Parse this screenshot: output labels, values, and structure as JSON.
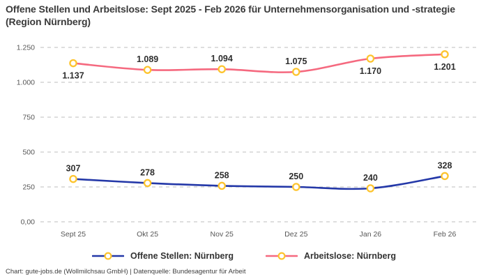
{
  "title": "Offene Stellen und Arbeitslose: Sept 2025 - Feb 2026 für Unternehmensorganisation und -strategie (Region Nürnberg)",
  "footer": "Chart: gute-jobs.de (Wollmilchsau GmbH) | Datenquelle: Bundesagentur für Arbeit",
  "colors": {
    "open_positions_line": "#2438a8",
    "unemployed_line": "#f5697f",
    "marker_ring": "#fdc42e",
    "marker_fill": "#ffffff",
    "gridline": "#c9c9c9",
    "axis_text": "#565656",
    "data_label_text": "#2e2e2e"
  },
  "legend": [
    {
      "label": "Offene Stellen: Nürnberg",
      "color": "#2438a8"
    },
    {
      "label": "Arbeitslose: Nürnberg",
      "color": "#f5697f"
    }
  ],
  "chart_data": {
    "type": "line",
    "title": "Offene Stellen und Arbeitslose: Sept 2025 - Feb 2026 für Unternehmensorganisation und -strategie (Region Nürnberg)",
    "categories": [
      "Sept 25",
      "Okt 25",
      "Nov 25",
      "Dez 25",
      "Jan 26",
      "Feb 26"
    ],
    "series": [
      {
        "name": "Offene Stellen: Nürnberg",
        "color": "#2438a8",
        "values": [
          307,
          278,
          258,
          250,
          240,
          328
        ],
        "labels": [
          "307",
          "278",
          "258",
          "250",
          "240",
          "328"
        ],
        "label_positions": [
          "above",
          "above",
          "above",
          "above",
          "above",
          "above"
        ]
      },
      {
        "name": "Arbeitslose: Nürnberg",
        "color": "#f5697f",
        "values": [
          1137,
          1089,
          1094,
          1075,
          1170,
          1201
        ],
        "labels": [
          "1.137",
          "1.089",
          "1.094",
          "1.075",
          "1.170",
          "1.201"
        ],
        "label_positions": [
          "below",
          "above",
          "above",
          "above",
          "below",
          "below"
        ]
      }
    ],
    "y_ticks": [
      {
        "value": 0,
        "label": "0,00"
      },
      {
        "value": 250,
        "label": "250"
      },
      {
        "value": 500,
        "label": "500"
      },
      {
        "value": 750,
        "label": "750"
      },
      {
        "value": 1000,
        "label": "1.000"
      },
      {
        "value": 1250,
        "label": "1.250"
      }
    ],
    "ylim": [
      0,
      1250
    ],
    "xlabel": "",
    "ylabel": "",
    "grid": "horizontal-dashed",
    "legend_position": "bottom",
    "marker_style": {
      "fill": "#ffffff",
      "ring": "#fdc42e"
    }
  }
}
